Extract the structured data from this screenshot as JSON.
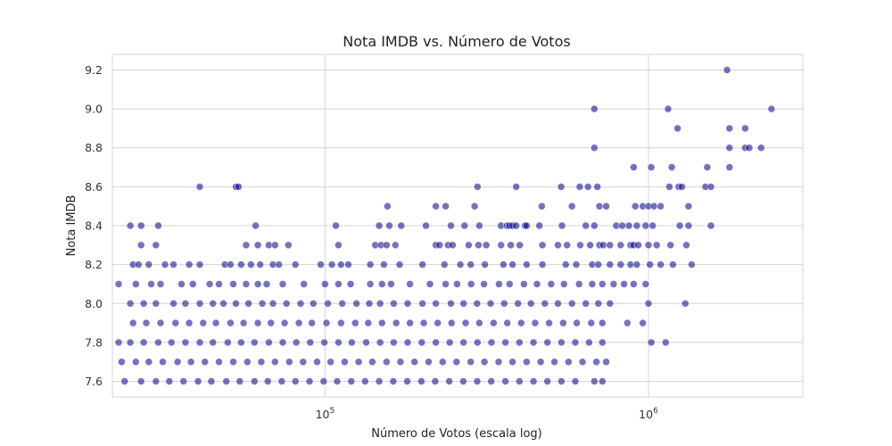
{
  "chart_data": {
    "type": "scatter",
    "title": "Nota IMDB vs. Número de Votos",
    "xlabel": "Número de Votos (escala log)",
    "ylabel": "Nota IMDB",
    "xscale": "log",
    "xlim": [
      22000,
      3000000
    ],
    "ylim": [
      7.52,
      9.28
    ],
    "x_ticks": [
      {
        "value": 100000,
        "base": "10",
        "exp": "5"
      },
      {
        "value": 1000000,
        "base": "10",
        "exp": "6"
      }
    ],
    "y_ticks": [
      7.6,
      7.8,
      8.0,
      8.2,
      8.4,
      8.6,
      8.8,
      9.0,
      9.2
    ],
    "grid": true,
    "colors": {
      "marker": "#00008b",
      "grid": "#d4d4d4"
    },
    "marker_opacity": 0.55,
    "points": [
      [
        1750000,
        9.2
      ],
      [
        2400000,
        9.0
      ],
      [
        1150000,
        9.0
      ],
      [
        680000,
        9.0
      ],
      [
        1230000,
        8.9
      ],
      [
        1780000,
        8.9
      ],
      [
        1990000,
        8.9
      ],
      [
        680000,
        8.8
      ],
      [
        1780000,
        8.8
      ],
      [
        1990000,
        8.8
      ],
      [
        2050000,
        8.8
      ],
      [
        2230000,
        8.8
      ],
      [
        900000,
        8.7
      ],
      [
        1020000,
        8.7
      ],
      [
        1180000,
        8.7
      ],
      [
        1520000,
        8.7
      ],
      [
        1780000,
        8.7
      ],
      [
        41000,
        8.6
      ],
      [
        53000,
        8.6
      ],
      [
        54000,
        8.6
      ],
      [
        296000,
        8.6
      ],
      [
        390000,
        8.6
      ],
      [
        537000,
        8.6
      ],
      [
        613000,
        8.6
      ],
      [
        650000,
        8.6
      ],
      [
        695000,
        8.6
      ],
      [
        1160000,
        8.6
      ],
      [
        1240000,
        8.6
      ],
      [
        1270000,
        8.6
      ],
      [
        1500000,
        8.6
      ],
      [
        1560000,
        8.6
      ],
      [
        156000,
        8.5
      ],
      [
        220000,
        8.5
      ],
      [
        236000,
        8.5
      ],
      [
        290000,
        8.5
      ],
      [
        468000,
        8.5
      ],
      [
        580000,
        8.5
      ],
      [
        705000,
        8.5
      ],
      [
        740000,
        8.5
      ],
      [
        910000,
        8.5
      ],
      [
        960000,
        8.5
      ],
      [
        1000000,
        8.5
      ],
      [
        1040000,
        8.5
      ],
      [
        1090000,
        8.5
      ],
      [
        1330000,
        8.5
      ],
      [
        25000,
        8.4
      ],
      [
        27000,
        8.4
      ],
      [
        30500,
        8.4
      ],
      [
        61000,
        8.4
      ],
      [
        108000,
        8.4
      ],
      [
        147000,
        8.4
      ],
      [
        158000,
        8.4
      ],
      [
        172000,
        8.4
      ],
      [
        205000,
        8.4
      ],
      [
        245000,
        8.4
      ],
      [
        270000,
        8.4
      ],
      [
        300000,
        8.4
      ],
      [
        350000,
        8.4
      ],
      [
        365000,
        8.4
      ],
      [
        372000,
        8.4
      ],
      [
        380000,
        8.4
      ],
      [
        390000,
        8.4
      ],
      [
        415000,
        8.4
      ],
      [
        420000,
        8.4
      ],
      [
        460000,
        8.4
      ],
      [
        540000,
        8.4
      ],
      [
        640000,
        8.4
      ],
      [
        680000,
        8.4
      ],
      [
        795000,
        8.4
      ],
      [
        830000,
        8.4
      ],
      [
        870000,
        8.4
      ],
      [
        920000,
        8.4
      ],
      [
        980000,
        8.4
      ],
      [
        1030000,
        8.4
      ],
      [
        1250000,
        8.4
      ],
      [
        1330000,
        8.4
      ],
      [
        1560000,
        8.4
      ],
      [
        27000,
        8.3
      ],
      [
        30000,
        8.3
      ],
      [
        57000,
        8.3
      ],
      [
        62000,
        8.3
      ],
      [
        67000,
        8.3
      ],
      [
        70000,
        8.3
      ],
      [
        77000,
        8.3
      ],
      [
        110000,
        8.3
      ],
      [
        143000,
        8.3
      ],
      [
        149000,
        8.3
      ],
      [
        155000,
        8.3
      ],
      [
        165000,
        8.3
      ],
      [
        220000,
        8.3
      ],
      [
        226000,
        8.3
      ],
      [
        240000,
        8.3
      ],
      [
        248000,
        8.3
      ],
      [
        278000,
        8.3
      ],
      [
        298000,
        8.3
      ],
      [
        315000,
        8.3
      ],
      [
        350000,
        8.3
      ],
      [
        375000,
        8.3
      ],
      [
        400000,
        8.3
      ],
      [
        470000,
        8.3
      ],
      [
        525000,
        8.3
      ],
      [
        560000,
        8.3
      ],
      [
        615000,
        8.3
      ],
      [
        660000,
        8.3
      ],
      [
        705000,
        8.3
      ],
      [
        725000,
        8.3
      ],
      [
        760000,
        8.3
      ],
      [
        820000,
        8.3
      ],
      [
        880000,
        8.3
      ],
      [
        900000,
        8.3
      ],
      [
        930000,
        8.3
      ],
      [
        1000000,
        8.3
      ],
      [
        1060000,
        8.3
      ],
      [
        1170000,
        8.3
      ],
      [
        1310000,
        8.3
      ],
      [
        25500,
        8.2
      ],
      [
        26500,
        8.2
      ],
      [
        28500,
        8.2
      ],
      [
        32000,
        8.2
      ],
      [
        34000,
        8.2
      ],
      [
        38000,
        8.2
      ],
      [
        41000,
        8.2
      ],
      [
        49000,
        8.2
      ],
      [
        51000,
        8.2
      ],
      [
        55000,
        8.2
      ],
      [
        59000,
        8.2
      ],
      [
        63000,
        8.2
      ],
      [
        69000,
        8.2
      ],
      [
        72000,
        8.2
      ],
      [
        81000,
        8.2
      ],
      [
        97000,
        8.2
      ],
      [
        105000,
        8.2
      ],
      [
        112000,
        8.2
      ],
      [
        118000,
        8.2
      ],
      [
        138000,
        8.2
      ],
      [
        152000,
        8.2
      ],
      [
        170000,
        8.2
      ],
      [
        200000,
        8.2
      ],
      [
        234000,
        8.2
      ],
      [
        262000,
        8.2
      ],
      [
        282000,
        8.2
      ],
      [
        312000,
        8.2
      ],
      [
        356000,
        8.2
      ],
      [
        380000,
        8.2
      ],
      [
        420000,
        8.2
      ],
      [
        470000,
        8.2
      ],
      [
        555000,
        8.2
      ],
      [
        598000,
        8.2
      ],
      [
        670000,
        8.2
      ],
      [
        700000,
        8.2
      ],
      [
        760000,
        8.2
      ],
      [
        820000,
        8.2
      ],
      [
        880000,
        8.2
      ],
      [
        920000,
        8.2
      ],
      [
        1010000,
        8.2
      ],
      [
        1090000,
        8.2
      ],
      [
        1190000,
        8.2
      ],
      [
        1360000,
        8.2
      ],
      [
        23000,
        8.1
      ],
      [
        26000,
        8.1
      ],
      [
        29000,
        8.1
      ],
      [
        31000,
        8.1
      ],
      [
        36000,
        8.1
      ],
      [
        39000,
        8.1
      ],
      [
        44000,
        8.1
      ],
      [
        47000,
        8.1
      ],
      [
        52000,
        8.1
      ],
      [
        57000,
        8.1
      ],
      [
        62000,
        8.1
      ],
      [
        66000,
        8.1
      ],
      [
        74000,
        8.1
      ],
      [
        86000,
        8.1
      ],
      [
        100000,
        8.1
      ],
      [
        110000,
        8.1
      ],
      [
        120000,
        8.1
      ],
      [
        138000,
        8.1
      ],
      [
        150000,
        8.1
      ],
      [
        160000,
        8.1
      ],
      [
        183000,
        8.1
      ],
      [
        211000,
        8.1
      ],
      [
        236000,
        8.1
      ],
      [
        256000,
        8.1
      ],
      [
        283000,
        8.1
      ],
      [
        310000,
        8.1
      ],
      [
        345000,
        8.1
      ],
      [
        372000,
        8.1
      ],
      [
        412000,
        8.1
      ],
      [
        452000,
        8.1
      ],
      [
        500000,
        8.1
      ],
      [
        548000,
        8.1
      ],
      [
        610000,
        8.1
      ],
      [
        670000,
        8.1
      ],
      [
        720000,
        8.1
      ],
      [
        780000,
        8.1
      ],
      [
        840000,
        8.1
      ],
      [
        900000,
        8.1
      ],
      [
        980000,
        8.1
      ],
      [
        25000,
        8.0
      ],
      [
        27500,
        8.0
      ],
      [
        30000,
        8.0
      ],
      [
        34000,
        8.0
      ],
      [
        37000,
        8.0
      ],
      [
        41000,
        8.0
      ],
      [
        45000,
        8.0
      ],
      [
        48500,
        8.0
      ],
      [
        53000,
        8.0
      ],
      [
        58000,
        8.0
      ],
      [
        64000,
        8.0
      ],
      [
        69000,
        8.0
      ],
      [
        76000,
        8.0
      ],
      [
        84000,
        8.0
      ],
      [
        92000,
        8.0
      ],
      [
        102000,
        8.0
      ],
      [
        113000,
        8.0
      ],
      [
        125000,
        8.0
      ],
      [
        137000,
        8.0
      ],
      [
        148000,
        8.0
      ],
      [
        163000,
        8.0
      ],
      [
        180000,
        8.0
      ],
      [
        200000,
        8.0
      ],
      [
        220000,
        8.0
      ],
      [
        245000,
        8.0
      ],
      [
        268000,
        8.0
      ],
      [
        295000,
        8.0
      ],
      [
        325000,
        8.0
      ],
      [
        358000,
        8.0
      ],
      [
        395000,
        8.0
      ],
      [
        433000,
        8.0
      ],
      [
        478000,
        8.0
      ],
      [
        525000,
        8.0
      ],
      [
        580000,
        8.0
      ],
      [
        640000,
        8.0
      ],
      [
        700000,
        8.0
      ],
      [
        760000,
        8.0
      ],
      [
        1000000,
        8.0
      ],
      [
        1300000,
        8.0
      ],
      [
        25500,
        7.9
      ],
      [
        28000,
        7.9
      ],
      [
        31000,
        7.9
      ],
      [
        34500,
        7.9
      ],
      [
        38000,
        7.9
      ],
      [
        42000,
        7.9
      ],
      [
        46000,
        7.9
      ],
      [
        51000,
        7.9
      ],
      [
        56000,
        7.9
      ],
      [
        62000,
        7.9
      ],
      [
        68000,
        7.9
      ],
      [
        75000,
        7.9
      ],
      [
        83000,
        7.9
      ],
      [
        91000,
        7.9
      ],
      [
        101000,
        7.9
      ],
      [
        112000,
        7.9
      ],
      [
        124000,
        7.9
      ],
      [
        136000,
        7.9
      ],
      [
        150000,
        7.9
      ],
      [
        166000,
        7.9
      ],
      [
        183000,
        7.9
      ],
      [
        202000,
        7.9
      ],
      [
        223000,
        7.9
      ],
      [
        246000,
        7.9
      ],
      [
        272000,
        7.9
      ],
      [
        300000,
        7.9
      ],
      [
        332000,
        7.9
      ],
      [
        366000,
        7.9
      ],
      [
        404000,
        7.9
      ],
      [
        446000,
        7.9
      ],
      [
        493000,
        7.9
      ],
      [
        545000,
        7.9
      ],
      [
        600000,
        7.9
      ],
      [
        665000,
        7.9
      ],
      [
        720000,
        7.9
      ],
      [
        860000,
        7.9
      ],
      [
        960000,
        7.9
      ],
      [
        23000,
        7.8
      ],
      [
        25000,
        7.8
      ],
      [
        27500,
        7.8
      ],
      [
        30500,
        7.8
      ],
      [
        33500,
        7.8
      ],
      [
        37000,
        7.8
      ],
      [
        41000,
        7.8
      ],
      [
        45000,
        7.8
      ],
      [
        50000,
        7.8
      ],
      [
        55000,
        7.8
      ],
      [
        60500,
        7.8
      ],
      [
        67000,
        7.8
      ],
      [
        74000,
        7.8
      ],
      [
        81500,
        7.8
      ],
      [
        90000,
        7.8
      ],
      [
        99500,
        7.8
      ],
      [
        110000,
        7.8
      ],
      [
        121000,
        7.8
      ],
      [
        134000,
        7.8
      ],
      [
        148000,
        7.8
      ],
      [
        163000,
        7.8
      ],
      [
        180000,
        7.8
      ],
      [
        199000,
        7.8
      ],
      [
        220000,
        7.8
      ],
      [
        243000,
        7.8
      ],
      [
        268000,
        7.8
      ],
      [
        296000,
        7.8
      ],
      [
        327000,
        7.8
      ],
      [
        361000,
        7.8
      ],
      [
        399000,
        7.8
      ],
      [
        441000,
        7.8
      ],
      [
        487000,
        7.8
      ],
      [
        538000,
        7.8
      ],
      [
        594000,
        7.8
      ],
      [
        655000,
        7.8
      ],
      [
        720000,
        7.8
      ],
      [
        1020000,
        7.8
      ],
      [
        1130000,
        7.8
      ],
      [
        23500,
        7.7
      ],
      [
        26000,
        7.7
      ],
      [
        28500,
        7.7
      ],
      [
        31500,
        7.7
      ],
      [
        35000,
        7.7
      ],
      [
        38500,
        7.7
      ],
      [
        42500,
        7.7
      ],
      [
        47000,
        7.7
      ],
      [
        52000,
        7.7
      ],
      [
        57500,
        7.7
      ],
      [
        63500,
        7.7
      ],
      [
        70000,
        7.7
      ],
      [
        77500,
        7.7
      ],
      [
        85500,
        7.7
      ],
      [
        94500,
        7.7
      ],
      [
        104000,
        7.7
      ],
      [
        115000,
        7.7
      ],
      [
        127000,
        7.7
      ],
      [
        140000,
        7.7
      ],
      [
        155000,
        7.7
      ],
      [
        171000,
        7.7
      ],
      [
        189000,
        7.7
      ],
      [
        209000,
        7.7
      ],
      [
        231000,
        7.7
      ],
      [
        255000,
        7.7
      ],
      [
        282000,
        7.7
      ],
      [
        311000,
        7.7
      ],
      [
        344000,
        7.7
      ],
      [
        380000,
        7.7
      ],
      [
        420000,
        7.7
      ],
      [
        464000,
        7.7
      ],
      [
        512000,
        7.7
      ],
      [
        566000,
        7.7
      ],
      [
        625000,
        7.7
      ],
      [
        690000,
        7.7
      ],
      [
        740000,
        7.7
      ],
      [
        24000,
        7.6
      ],
      [
        27000,
        7.6
      ],
      [
        30000,
        7.6
      ],
      [
        33000,
        7.6
      ],
      [
        36500,
        7.6
      ],
      [
        40500,
        7.6
      ],
      [
        44500,
        7.6
      ],
      [
        49500,
        7.6
      ],
      [
        54500,
        7.6
      ],
      [
        60500,
        7.6
      ],
      [
        66500,
        7.6
      ],
      [
        73500,
        7.6
      ],
      [
        81000,
        7.6
      ],
      [
        89500,
        7.6
      ],
      [
        99000,
        7.6
      ],
      [
        109000,
        7.6
      ],
      [
        120500,
        7.6
      ],
      [
        133000,
        7.6
      ],
      [
        147000,
        7.6
      ],
      [
        162500,
        7.6
      ],
      [
        179500,
        7.6
      ],
      [
        198500,
        7.6
      ],
      [
        219000,
        7.6
      ],
      [
        242000,
        7.6
      ],
      [
        267500,
        7.6
      ],
      [
        295500,
        7.6
      ],
      [
        326500,
        7.6
      ],
      [
        361000,
        7.6
      ],
      [
        399000,
        7.6
      ],
      [
        441000,
        7.6
      ],
      [
        487000,
        7.6
      ],
      [
        538000,
        7.6
      ],
      [
        594000,
        7.6
      ],
      [
        680000,
        7.6
      ],
      [
        720000,
        7.6
      ]
    ]
  }
}
